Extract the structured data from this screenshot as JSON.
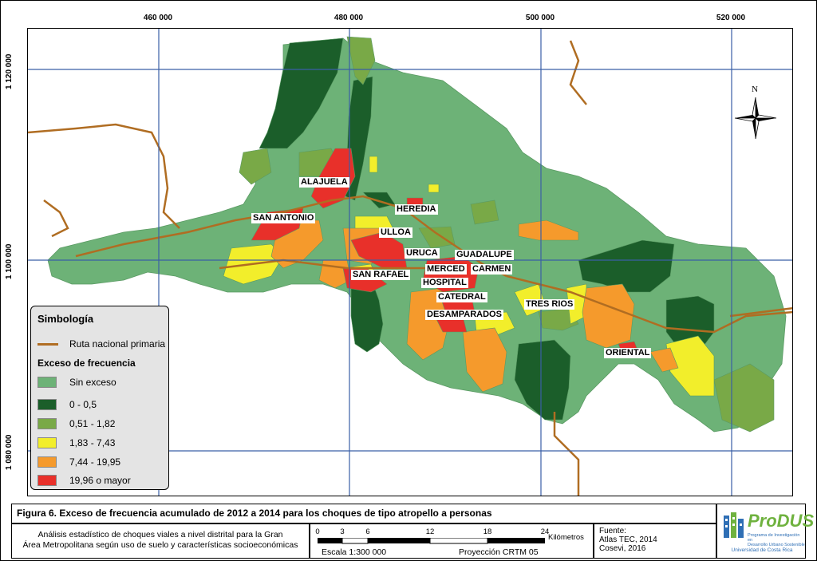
{
  "map": {
    "coords_top": [
      "460 000",
      "480 000",
      "500 000",
      "520 000"
    ],
    "coords_left": [
      "1 120 000",
      "1 100 000",
      "1 080 000"
    ],
    "north_label": "N",
    "place_labels": {
      "alajuela": "ALAJUELA",
      "heredia": "HEREDIA",
      "san_antonio": "SAN ANTONIO",
      "ulloa": "ULLOA",
      "uruca": "URUCA",
      "guadalupe": "GUADALUPE",
      "merced": "MERCED",
      "carmen": "CARMEN",
      "san_rafael": "SAN RAFAEL",
      "hospital": "HOSPITAL",
      "catedral": "CATEDRAL",
      "tres_rios": "TRES RIOS",
      "desamparados": "DESAMPARADOS",
      "oriental": "ORIENTAL"
    }
  },
  "legend": {
    "title": "Simbología",
    "route_label": "Ruta nacional primaria",
    "subtitle": "Exceso de frecuencia",
    "classes": [
      {
        "label": "Sin exceso",
        "color": "#6db277"
      },
      {
        "label": "0 - 0,5",
        "color": "#1b5e2a"
      },
      {
        "label": "0,51 - 1,82",
        "color": "#79a947"
      },
      {
        "label": "1,83 - 7,43",
        "color": "#f2ee2b"
      },
      {
        "label": "7,44 - 19,95",
        "color": "#f59a2c"
      },
      {
        "label": "19,96 o mayor",
        "color": "#e8302a"
      }
    ],
    "route_color": "#b06d22"
  },
  "footer": {
    "figure_title": "Figura 6. Exceso de frecuencia acumulado de 2012 a 2014 para los choques de tipo atropello a personas",
    "description_line1": "Análisis estadístico de choques viales a nivel distrital para la Gran",
    "description_line2": "Área Metropolitana según uso de suelo y características socioeconómicas",
    "scale_ticks": [
      "0",
      "3",
      "6",
      "12",
      "18",
      "24"
    ],
    "scale_unit": "Kilómetros",
    "scale_text": "Escala  1:300 000",
    "projection": "Proyección CRTM 05",
    "source_title": "Fuente:",
    "source_line1": "Atlas TEC, 2014",
    "source_line2": "Cosevi, 2016",
    "logo_name": "ProDUS",
    "logo_sub1": "Programa de Investigación en",
    "logo_sub2": "Desarrollo Urbano Sostenible",
    "logo_sub3": "Universidad de Costa Rica"
  }
}
